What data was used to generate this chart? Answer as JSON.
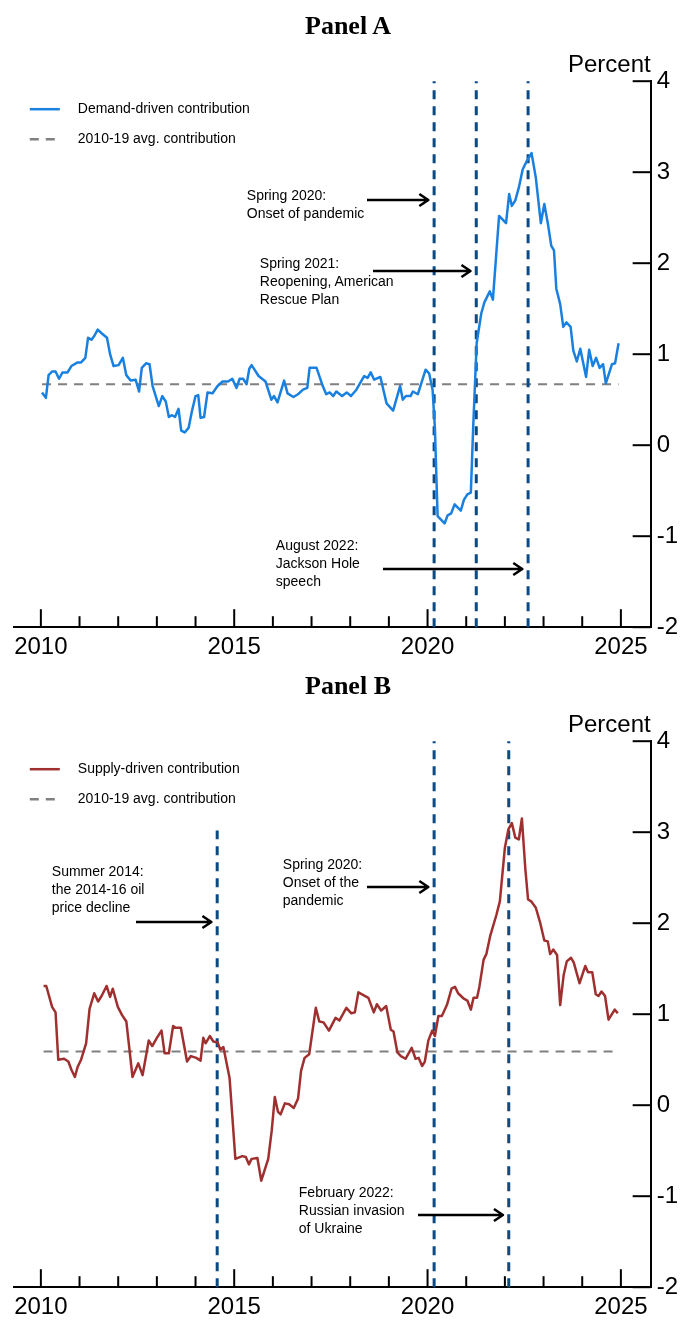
{
  "chart_data": [
    {
      "type": "line",
      "title": "Panel A",
      "ylabel": "Percent",
      "legend": "top left",
      "grid": false,
      "xlim": [
        2009.3,
        2025.77
      ],
      "xticks": [
        2010,
        {
          "value": 2011,
          "label": null
        },
        {
          "value": 2012,
          "label": null
        },
        {
          "value": 2013,
          "label": null
        },
        {
          "value": 2014,
          "label": null
        },
        2015,
        {
          "value": 2016,
          "label": null
        },
        {
          "value": 2017,
          "label": null
        },
        {
          "value": 2018,
          "label": null
        },
        {
          "value": 2019,
          "label": null
        },
        2020,
        {
          "value": 2021,
          "label": null
        },
        {
          "value": 2022,
          "label": null
        },
        {
          "value": 2023,
          "label": null
        },
        {
          "value": 2024,
          "label": null
        },
        2025
      ],
      "ylim": [
        -2,
        4
      ],
      "yticks": [
        -2,
        -1,
        0,
        1,
        2,
        3,
        4
      ],
      "series": [
        {
          "name": "Demand-driven contribution",
          "color": "#1a80e0",
          "x": [
            2010.03,
            2010.13,
            2010.2,
            2010.29,
            2010.38,
            2010.47,
            2010.56,
            2010.69,
            2010.79,
            2010.95,
            2011.04,
            2011.15,
            2011.22,
            2011.31,
            2011.38,
            2011.47,
            2011.57,
            2011.71,
            2011.79,
            2011.88,
            2012.01,
            2012.12,
            2012.21,
            2012.32,
            2012.45,
            2012.54,
            2012.61,
            2012.72,
            2012.81,
            2012.89,
            2013.05,
            2013.14,
            2013.23,
            2013.31,
            2013.38,
            2013.47,
            2013.56,
            2013.63,
            2013.72,
            2013.82,
            2013.91,
            2014.0,
            2014.07,
            2014.13,
            2014.22,
            2014.31,
            2014.44,
            2014.57,
            2014.7,
            2014.84,
            2014.95,
            2015.06,
            2015.14,
            2015.23,
            2015.32,
            2015.39,
            2015.45,
            2015.63,
            2015.81,
            2015.96,
            2016.03,
            2016.12,
            2016.29,
            2016.38,
            2016.53,
            2016.65,
            2016.78,
            2016.89,
            2016.95,
            2017.13,
            2017.29,
            2017.38,
            2017.47,
            2017.56,
            2017.64,
            2017.79,
            2017.91,
            2018.02,
            2018.16,
            2018.36,
            2018.45,
            2018.53,
            2018.62,
            2018.78,
            2018.94,
            2019.11,
            2019.29,
            2019.36,
            2019.44,
            2019.56,
            2019.62,
            2019.75,
            2019.95,
            2020.04,
            2020.13,
            2020.19,
            2020.26,
            2020.44,
            2020.52,
            2020.61,
            2020.7,
            2020.86,
            2020.94,
            2021.03,
            2021.12,
            2021.18,
            2021.27,
            2021.39,
            2021.47,
            2021.61,
            2021.69,
            2021.85,
            2022.03,
            2022.11,
            2022.18,
            2022.27,
            2022.36,
            2022.46,
            2022.55,
            2022.69,
            2022.8,
            2022.93,
            2023.02,
            2023.11,
            2023.2,
            2023.27,
            2023.33,
            2023.43,
            2023.51,
            2023.59,
            2023.7,
            2023.77,
            2023.86,
            2023.95,
            2024.1,
            2024.18,
            2024.27,
            2024.36,
            2024.45,
            2024.54,
            2024.61,
            2024.77,
            2024.85,
            2024.94
          ],
          "values": [
            0.58,
            0.52,
            0.77,
            0.81,
            0.81,
            0.73,
            0.8,
            0.8,
            0.87,
            0.91,
            0.91,
            0.96,
            1.18,
            1.16,
            1.2,
            1.27,
            1.23,
            1.18,
            1.0,
            0.87,
            0.88,
            0.96,
            0.77,
            0.71,
            0.72,
            0.59,
            0.85,
            0.9,
            0.89,
            0.65,
            0.43,
            0.54,
            0.48,
            0.31,
            0.33,
            0.31,
            0.4,
            0.16,
            0.14,
            0.19,
            0.38,
            0.54,
            0.55,
            0.3,
            0.31,
            0.58,
            0.57,
            0.65,
            0.7,
            0.7,
            0.73,
            0.63,
            0.73,
            0.73,
            0.67,
            0.84,
            0.88,
            0.76,
            0.7,
            0.5,
            0.54,
            0.47,
            0.71,
            0.57,
            0.53,
            0.56,
            0.61,
            0.63,
            0.85,
            0.85,
            0.65,
            0.56,
            0.58,
            0.54,
            0.59,
            0.54,
            0.58,
            0.54,
            0.61,
            0.76,
            0.74,
            0.8,
            0.72,
            0.75,
            0.46,
            0.38,
            0.65,
            0.5,
            0.54,
            0.54,
            0.59,
            0.56,
            0.83,
            0.79,
            0.61,
            0.19,
            -0.78,
            -0.86,
            -0.77,
            -0.75,
            -0.65,
            -0.72,
            -0.6,
            -0.54,
            -0.52,
            0.19,
            1.12,
            1.45,
            1.57,
            1.69,
            1.6,
            2.52,
            2.44,
            2.76,
            2.63,
            2.69,
            2.83,
            3.03,
            3.11,
            3.21,
            2.94,
            2.44,
            2.65,
            2.44,
            2.19,
            2.14,
            1.72,
            1.55,
            1.3,
            1.35,
            1.3,
            1.04,
            0.92,
            1.06,
            0.75,
            1.05,
            0.87,
            0.96,
            0.85,
            0.89,
            0.68,
            0.89,
            0.9,
            1.12
          ]
        }
      ],
      "ref_lines": [
        {
          "axis": "y",
          "value": 0.67,
          "label": "2010-19 avg. contribution",
          "color": "#808080",
          "line_style": "dashed"
        },
        {
          "axis": "x",
          "value": 2020.17,
          "color": "#0b4a84",
          "line_style": "dashed"
        },
        {
          "axis": "x",
          "value": 2021.26,
          "color": "#0b4a84",
          "line_style": "dashed"
        },
        {
          "axis": "x",
          "value": 2022.6,
          "color": "#0b4a84",
          "line_style": "dashed"
        }
      ],
      "annotations": [
        "Spring 2020: Onset of pandemic",
        "Spring 2021: Reopening, American Rescue Plan",
        "August 2022: Jackson Hole speech"
      ]
    },
    {
      "type": "line",
      "title": "Panel B",
      "ylabel": "Percent",
      "legend": "top left",
      "grid": false,
      "xlim": [
        2009.3,
        2025.77
      ],
      "xticks": [
        2010,
        {
          "value": 2011,
          "label": null
        },
        {
          "value": 2012,
          "label": null
        },
        {
          "value": 2013,
          "label": null
        },
        {
          "value": 2014,
          "label": null
        },
        2015,
        {
          "value": 2016,
          "label": null
        },
        {
          "value": 2017,
          "label": null
        },
        {
          "value": 2018,
          "label": null
        },
        {
          "value": 2019,
          "label": null
        },
        2020,
        {
          "value": 2021,
          "label": null
        },
        {
          "value": 2022,
          "label": null
        },
        {
          "value": 2023,
          "label": null
        },
        {
          "value": 2024,
          "label": null
        },
        2025
      ],
      "ylim": [
        -2,
        4
      ],
      "yticks": [
        -2,
        -1,
        0,
        1,
        2,
        3,
        4
      ],
      "series": [
        {
          "name": "Supply-driven contribution",
          "color": "#a03030",
          "x": [
            2010.07,
            2010.14,
            2010.29,
            2010.38,
            2010.45,
            2010.6,
            2010.71,
            2010.79,
            2010.88,
            2010.95,
            2011.04,
            2011.17,
            2011.26,
            2011.38,
            2011.48,
            2011.57,
            2011.7,
            2011.79,
            2011.86,
            2011.99,
            2012.1,
            2012.21,
            2012.37,
            2012.52,
            2012.63,
            2012.79,
            2012.88,
            2013.0,
            2013.12,
            2013.2,
            2013.31,
            2013.42,
            2013.49,
            2013.62,
            2013.78,
            2013.88,
            2014.02,
            2014.13,
            2014.2,
            2014.26,
            2014.37,
            2014.46,
            2014.57,
            2014.64,
            2014.72,
            2014.88,
            2015.03,
            2015.21,
            2015.3,
            2015.38,
            2015.45,
            2015.6,
            2015.7,
            2015.88,
            2015.97,
            2016.05,
            2016.13,
            2016.2,
            2016.31,
            2016.42,
            2016.54,
            2016.65,
            2016.73,
            2016.82,
            2016.94,
            2017.11,
            2017.2,
            2017.31,
            2017.45,
            2017.62,
            2017.72,
            2017.9,
            2018.03,
            2018.12,
            2018.21,
            2018.47,
            2018.61,
            2018.69,
            2018.8,
            2018.93,
            2019.05,
            2019.12,
            2019.22,
            2019.31,
            2019.43,
            2019.59,
            2019.69,
            2019.77,
            2019.86,
            2019.93,
            2020.02,
            2020.12,
            2020.19,
            2020.28,
            2020.37,
            2020.5,
            2020.62,
            2020.71,
            2020.79,
            2020.94,
            2021.03,
            2021.12,
            2021.19,
            2021.28,
            2021.34,
            2021.45,
            2021.52,
            2021.62,
            2021.78,
            2021.87,
            2022.0,
            2022.09,
            2022.18,
            2022.27,
            2022.36,
            2022.44,
            2022.53,
            2022.6,
            2022.68,
            2022.8,
            2022.91,
            2023.02,
            2023.11,
            2023.17,
            2023.25,
            2023.35,
            2023.43,
            2023.52,
            2023.6,
            2023.71,
            2023.78,
            2023.93,
            2024.08,
            2024.15,
            2024.26,
            2024.35,
            2024.42,
            2024.5,
            2024.59,
            2024.68,
            2024.84,
            2024.92
          ],
          "values": [
            1.31,
            1.31,
            1.08,
            1.02,
            0.5,
            0.51,
            0.48,
            0.39,
            0.31,
            0.42,
            0.5,
            0.68,
            1.06,
            1.23,
            1.14,
            1.2,
            1.31,
            1.19,
            1.28,
            1.08,
            0.99,
            0.92,
            0.31,
            0.46,
            0.33,
            0.71,
            0.65,
            0.74,
            0.82,
            0.57,
            0.57,
            0.87,
            0.85,
            0.85,
            0.48,
            0.54,
            0.52,
            0.49,
            0.74,
            0.68,
            0.76,
            0.7,
            0.69,
            0.61,
            0.64,
            0.3,
            -0.59,
            -0.56,
            -0.57,
            -0.65,
            -0.59,
            -0.58,
            -0.83,
            -0.59,
            -0.28,
            0.09,
            -0.07,
            -0.1,
            0.02,
            0.01,
            -0.03,
            0.07,
            0.38,
            0.52,
            0.56,
            1.07,
            0.92,
            0.91,
            0.82,
            0.96,
            0.93,
            1.07,
            1.01,
            1.02,
            1.24,
            1.18,
            1.02,
            1.11,
            1.04,
            1.09,
            0.83,
            0.81,
            0.58,
            0.54,
            0.51,
            0.63,
            0.51,
            0.52,
            0.43,
            0.48,
            0.71,
            0.82,
            0.76,
            0.98,
            0.98,
            1.1,
            1.28,
            1.3,
            1.23,
            1.17,
            1.15,
            1.05,
            1.18,
            1.18,
            1.3,
            1.6,
            1.66,
            1.86,
            2.09,
            2.24,
            2.83,
            3.03,
            3.1,
            2.94,
            2.92,
            3.15,
            2.59,
            2.26,
            2.24,
            2.17,
            2.01,
            1.81,
            1.8,
            1.66,
            1.71,
            1.65,
            1.1,
            1.43,
            1.58,
            1.62,
            1.57,
            1.34,
            1.53,
            1.46,
            1.46,
            1.22,
            1.2,
            1.25,
            1.2,
            0.94,
            1.05,
            1.01
          ]
        }
      ],
      "ref_lines": [
        {
          "axis": "y",
          "value": 0.59,
          "label": "2010-19 avg. contribution",
          "color": "#808080",
          "line_style": "dashed"
        },
        {
          "axis": "x",
          "value": 2014.56,
          "color": "#0b4a84",
          "line_style": "dashed"
        },
        {
          "axis": "x",
          "value": 2020.17,
          "color": "#0b4a84",
          "line_style": "dashed"
        },
        {
          "axis": "x",
          "value": 2022.1,
          "color": "#0b4a84",
          "line_style": "dashed"
        }
      ],
      "annotations": [
        "Summer 2014: the 2014-16 oil price decline",
        "Spring 2020: Onset of the pandemic",
        "February 2022: Russian invasion of Ukraine"
      ]
    }
  ]
}
